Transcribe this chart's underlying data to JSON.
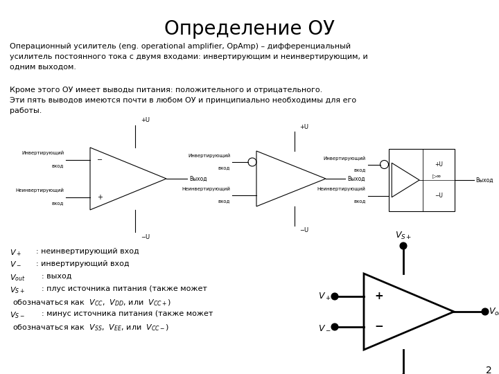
{
  "title": "Определение ОУ",
  "title_fontsize": 20,
  "bg_color": "#ffffff",
  "text_color": "#000000",
  "para1_line1": "Операционный усилитель (eng. operational amplifier, OpAmp) – дифференциальный",
  "para1_line2": "усилитель постоянного тока с двумя входами: инвертирующим и неинвертирующим, и",
  "para1_line3": "одним выходом.",
  "para2_line1": "Кроме этого ОУ имеет выводы питания: положительного и отрицательного.",
  "para2_line2": "Эти пять выводов имеются почти в любом ОУ и принципиально необходимы для его",
  "para2_line3": "работы.",
  "page_number": "2"
}
